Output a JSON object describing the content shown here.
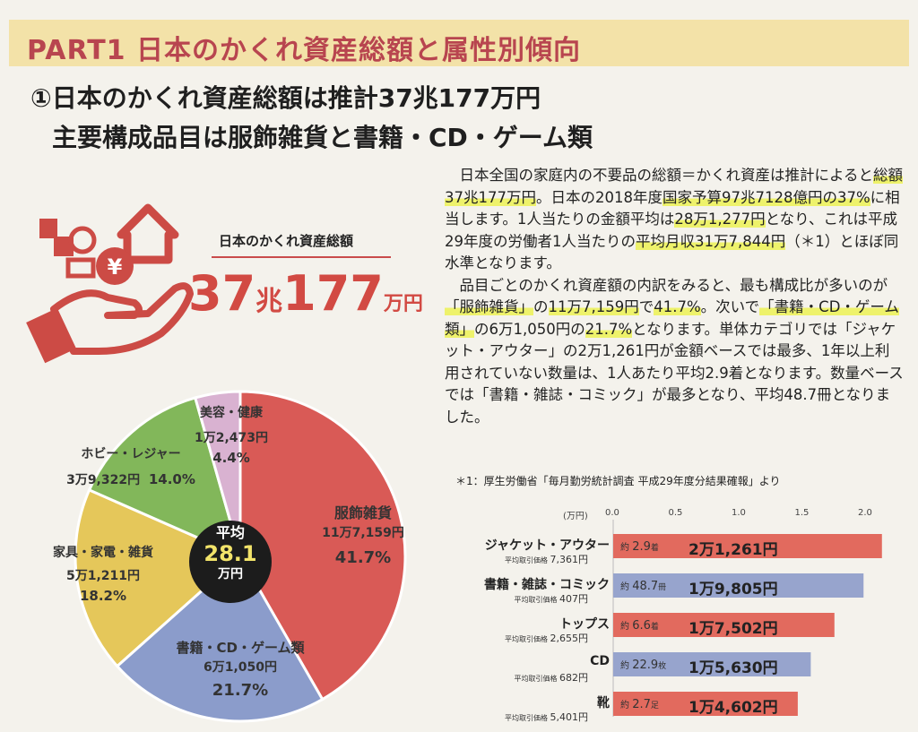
{
  "header": {
    "banner": "PART1 日本のかくれ資産総額と属性別傾向",
    "heading_line1": "①日本のかくれ資産総額は推計37兆177万円",
    "heading_line2": "主要構成品目は服飾雑貨と書籍・CD・ゲーム類"
  },
  "hero": {
    "label": "日本のかくれ資産総額",
    "amount_num1": "37",
    "amount_unit1": "兆",
    "amount_num2": "177",
    "amount_unit2": "万円"
  },
  "body_text": {
    "p1": [
      {
        "t": "日本全国の家庭内の不要品の総額＝かくれ資産は推計によると",
        "h": false
      },
      {
        "t": "総額37兆177万円",
        "h": true
      },
      {
        "t": "。日本の2018年度",
        "h": false
      },
      {
        "t": "国家予算97兆7128億円の37%",
        "h": true
      },
      {
        "t": "に相当します。1人当たりの金額平均は",
        "h": false
      },
      {
        "t": "28万1,277円",
        "h": true
      },
      {
        "t": "となり、これは平成29年度の労働者1人当たりの",
        "h": false
      },
      {
        "t": "平均月収31万7,844円",
        "h": true
      },
      {
        "t": "（＊1）とほぼ同水準となります。",
        "h": false
      }
    ],
    "p2": [
      {
        "t": "品目ごとのかくれ資産額の内訳をみると、最も構成比が多いのが",
        "h": false
      },
      {
        "t": "「服飾雑貨」",
        "h": true
      },
      {
        "t": "の",
        "h": false
      },
      {
        "t": "11万7,159円",
        "h": true
      },
      {
        "t": "で",
        "h": false
      },
      {
        "t": "41.7%",
        "h": true
      },
      {
        "t": "。次いで",
        "h": false
      },
      {
        "t": "「書籍・CD・ゲーム類」",
        "h": true
      },
      {
        "t": "の6万1,050円の",
        "h": false
      },
      {
        "t": "21.7%",
        "h": true
      },
      {
        "t": "となります。単体カテゴリでは「ジャケット・アウター」の2万1,261円が金額ベースでは最多、1年以上利用されていない数量は、1人あたり平均2.9着となります。数量ベースでは「書籍・雑誌・コミック」が最多となり、平均48.7冊となりました。",
        "h": false
      }
    ],
    "footnote": "＊1：厚生労働省「毎月勤労統計調査 平成29年度分結果確報」より"
  },
  "chart_data": [
    {
      "type": "pie",
      "center_label": "平均",
      "center_value": "28.1",
      "center_unit": "万円",
      "slices": [
        {
          "name": "服飾雑貨",
          "amount": "11万7,159円",
          "pct_label": "41.7%",
          "value": 41.7,
          "color": "#d95a56"
        },
        {
          "name": "書籍・CD・ゲーム類",
          "amount": "6万1,050円",
          "pct_label": "21.7%",
          "value": 21.7,
          "color": "#8b9ccb"
        },
        {
          "name": "家具・家電・雑貨",
          "amount": "5万1,211円",
          "pct_label": "18.2%",
          "value": 18.2,
          "color": "#e5c75a"
        },
        {
          "name": "ホビー・レジャー",
          "amount": "3万9,322円",
          "pct_label": "14.0%",
          "value": 14.0,
          "color": "#82b75a"
        },
        {
          "name": "美容・健康",
          "amount": "1万2,473円",
          "pct_label": "4.4%",
          "value": 4.4,
          "color": "#d9b2d1"
        }
      ]
    },
    {
      "type": "bar",
      "unit_label": "(万円)",
      "ticks": [
        "0.0",
        "0.5",
        "1.0",
        "1.5",
        "2.0"
      ],
      "xlim": [
        0,
        2.0
      ],
      "bars": [
        {
          "name": "ジャケット・アウター",
          "price_label": "平均取引価格",
          "price": "7,361円",
          "count_prefix": "約",
          "count": "2.9",
          "count_unit": "着",
          "amount_label": "2万1,261円",
          "value": 2.1261,
          "color": "#e26a5e"
        },
        {
          "name": "書籍・雑誌・コミック",
          "price_label": "平均取引価格",
          "price": "407円",
          "count_prefix": "約",
          "count": "48.7",
          "count_unit": "冊",
          "amount_label": "1万9,805円",
          "value": 1.9805,
          "color": "#97a4cd"
        },
        {
          "name": "トップス",
          "price_label": "平均取引価格",
          "price": "2,655円",
          "count_prefix": "約",
          "count": "6.6",
          "count_unit": "着",
          "amount_label": "1万7,502円",
          "value": 1.7502,
          "color": "#e26a5e"
        },
        {
          "name": "CD",
          "price_label": "平均取引価格",
          "price": "682円",
          "count_prefix": "約",
          "count": "22.9",
          "count_unit": "枚",
          "amount_label": "1万5,630円",
          "value": 1.563,
          "color": "#97a4cd"
        },
        {
          "name": "靴",
          "price_label": "平均取引価格",
          "price": "5,401円",
          "count_prefix": "約",
          "count": "2.7",
          "count_unit": "足",
          "amount_label": "1万4,602円",
          "value": 1.4602,
          "color": "#e26a5e"
        }
      ]
    }
  ]
}
